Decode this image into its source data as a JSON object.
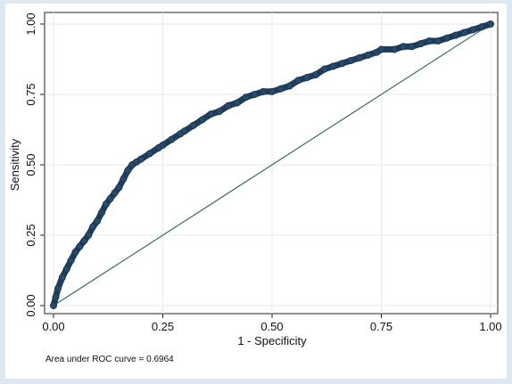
{
  "chart_data": {
    "type": "line",
    "title": "",
    "xlabel": "1 - Specificity",
    "ylabel": "Sensitivity",
    "xlim": [
      0,
      1
    ],
    "ylim": [
      0,
      1
    ],
    "x_ticks": [
      "0.00",
      "0.25",
      "0.50",
      "0.75",
      "1.00"
    ],
    "y_ticks": [
      "0.00",
      "0.25",
      "0.50",
      "0.75",
      "1.00"
    ],
    "x_tick_values": [
      0,
      0.25,
      0.5,
      0.75,
      1
    ],
    "y_tick_values": [
      0,
      0.25,
      0.5,
      0.75,
      1
    ],
    "grid": true,
    "note": "Area under ROC curve = 0.6964",
    "series": [
      {
        "color": "#1f3e5c",
        "marker": "circle",
        "x": [
          0,
          0.005,
          0.01,
          0.02,
          0.03,
          0.04,
          0.05,
          0.06,
          0.07,
          0.08,
          0.09,
          0.1,
          0.11,
          0.12,
          0.13,
          0.14,
          0.15,
          0.16,
          0.17,
          0.18,
          0.19,
          0.2,
          0.22,
          0.24,
          0.25,
          0.27,
          0.29,
          0.3,
          0.32,
          0.34,
          0.36,
          0.38,
          0.4,
          0.42,
          0.44,
          0.46,
          0.48,
          0.5,
          0.52,
          0.54,
          0.56,
          0.58,
          0.6,
          0.62,
          0.64,
          0.66,
          0.68,
          0.7,
          0.72,
          0.74,
          0.75,
          0.78,
          0.8,
          0.82,
          0.84,
          0.86,
          0.88,
          0.9,
          0.92,
          0.94,
          0.96,
          0.98,
          1.0
        ],
        "y": [
          0,
          0.03,
          0.06,
          0.1,
          0.13,
          0.16,
          0.19,
          0.21,
          0.23,
          0.25,
          0.28,
          0.3,
          0.33,
          0.36,
          0.38,
          0.4,
          0.42,
          0.45,
          0.48,
          0.5,
          0.51,
          0.52,
          0.54,
          0.56,
          0.57,
          0.59,
          0.61,
          0.62,
          0.64,
          0.66,
          0.68,
          0.69,
          0.71,
          0.72,
          0.74,
          0.75,
          0.76,
          0.76,
          0.77,
          0.78,
          0.8,
          0.81,
          0.82,
          0.84,
          0.85,
          0.86,
          0.87,
          0.88,
          0.89,
          0.9,
          0.91,
          0.91,
          0.92,
          0.92,
          0.93,
          0.94,
          0.94,
          0.95,
          0.96,
          0.97,
          0.98,
          0.99,
          1.0
        ]
      },
      {
        "color": "#3a6e5e",
        "marker": "none",
        "x": [
          0,
          1
        ],
        "y": [
          0,
          1
        ]
      }
    ]
  }
}
